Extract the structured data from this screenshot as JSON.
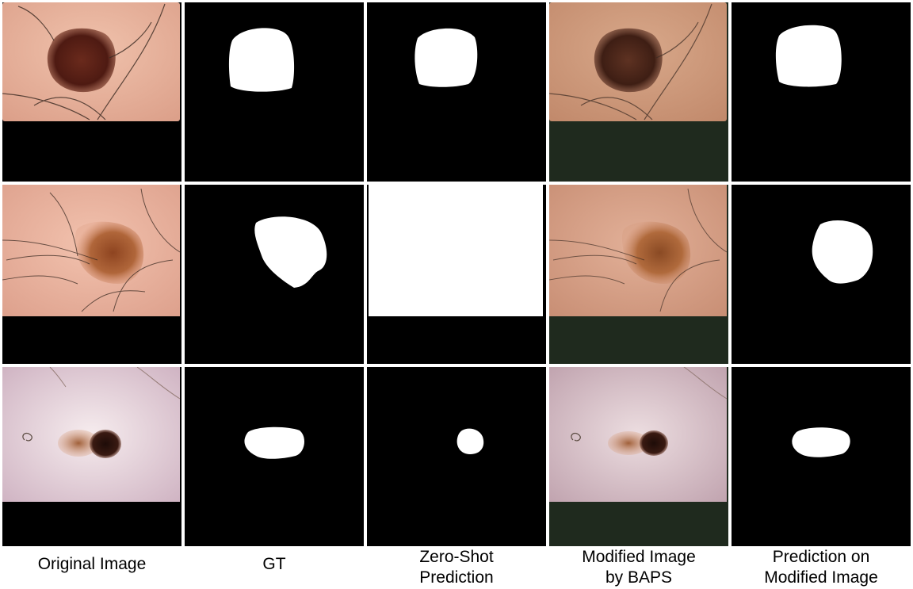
{
  "columns": [
    {
      "id": "original",
      "caption_lines": [
        "Original Image"
      ]
    },
    {
      "id": "gt",
      "caption_lines": [
        "GT"
      ]
    },
    {
      "id": "zeroshot",
      "caption_lines": [
        "Zero-Shot",
        "Prediction"
      ]
    },
    {
      "id": "modified",
      "caption_lines": [
        "Modified Image",
        "by BAPS"
      ]
    },
    {
      "id": "prediction",
      "caption_lines": [
        "Prediction on",
        "Modified Image"
      ]
    }
  ],
  "rows": [
    {
      "id": "row-1",
      "skin_color": "#e7b39c",
      "lesion_color": "#5a1f17",
      "filler_modified": "#1f2a1e"
    },
    {
      "id": "row-2",
      "skin_color": "#e9b3a0",
      "lesion_color": "#a35a30",
      "filler_modified": "#1f2a1e"
    },
    {
      "id": "row-3",
      "skin_color": "#ead8df",
      "lesion_color": "#3a1a12",
      "filler_modified": "#1f2a1e"
    }
  ]
}
